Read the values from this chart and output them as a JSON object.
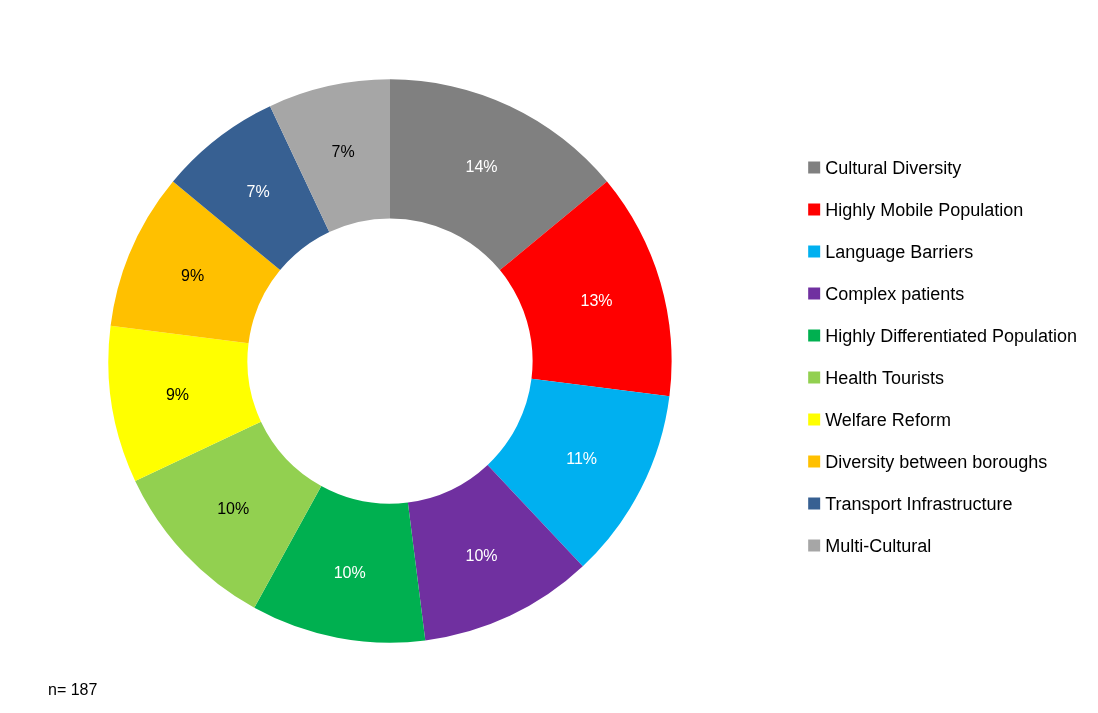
{
  "chart_data": {
    "type": "donut",
    "categories": [
      "Cultural Diversity",
      "Highly Mobile Population",
      "Language Barriers",
      "Complex patients",
      "Highly Differentiated Population",
      "Health Tourists",
      "Welfare Reform",
      "Diversity between boroughs",
      "Transport Infrastructure",
      "Multi-Cultural"
    ],
    "values": [
      14,
      13,
      11,
      10,
      10,
      10,
      9,
      9,
      7,
      7
    ],
    "colors": [
      "#808080",
      "#ff0000",
      "#00b0f0",
      "#7030a0",
      "#00b050",
      "#92d050",
      "#ffff00",
      "#ffc000",
      "#376092",
      "#a6a6a6"
    ],
    "value_labels": [
      "14%",
      "13%",
      "11%",
      "10%",
      "10%",
      "10%",
      "9%",
      "9%",
      "7%",
      "7%"
    ],
    "legend": "right",
    "annotations": [
      "n= 187"
    ]
  }
}
